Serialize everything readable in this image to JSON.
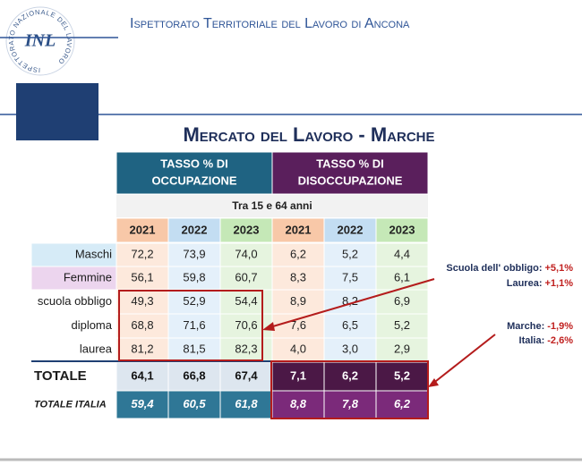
{
  "header": {
    "organization": "Ispettorato Territoriale del Lavoro di Ancona",
    "logo_ring": "ISPETTORATO NAZIONALE DEL LAVORO",
    "logo_monogram": "INL"
  },
  "title": "Mercato del Lavoro - Marche",
  "table": {
    "groups": [
      "TASSO % DI",
      "OCCUPAZIONE",
      "TASSO % DI",
      "DISOCCUPAZIONE"
    ],
    "subheader": "Tra 15 e 64 anni",
    "years": [
      "2021",
      "2022",
      "2023",
      "2021",
      "2022",
      "2023"
    ],
    "rows": [
      [
        "Maschi",
        "72,2",
        "73,9",
        "74,0",
        "6,2",
        "5,2",
        "4,4"
      ],
      [
        "Femmine",
        "56,1",
        "59,8",
        "60,7",
        "8,3",
        "7,5",
        "6,1"
      ],
      [
        "scuola obbligo",
        "49,3",
        "52,9",
        "54,4",
        "8,9",
        "8,2",
        "6,9"
      ],
      [
        "diploma",
        "68,8",
        "71,6",
        "70,6",
        "7,6",
        "6,5",
        "5,2"
      ],
      [
        "laurea",
        "81,2",
        "81,5",
        "82,3",
        "4,0",
        "3,0",
        "2,9"
      ],
      [
        "TOTALE",
        "64,1",
        "66,8",
        "67,4",
        "7,1",
        "6,2",
        "5,2"
      ],
      [
        "TOTALE ITALIA",
        "59,4",
        "60,5",
        "61,8",
        "8,8",
        "7,8",
        "6,2"
      ]
    ]
  },
  "annotations": [
    {
      "label": "Scuola dell' obbligo:",
      "value": "+5,1%"
    },
    {
      "label": "Laurea:",
      "value": "+1,1%"
    },
    {
      "label": "Marche:",
      "value": "-1,9%"
    },
    {
      "label": "Italia:",
      "value": "-2,6%"
    }
  ]
}
